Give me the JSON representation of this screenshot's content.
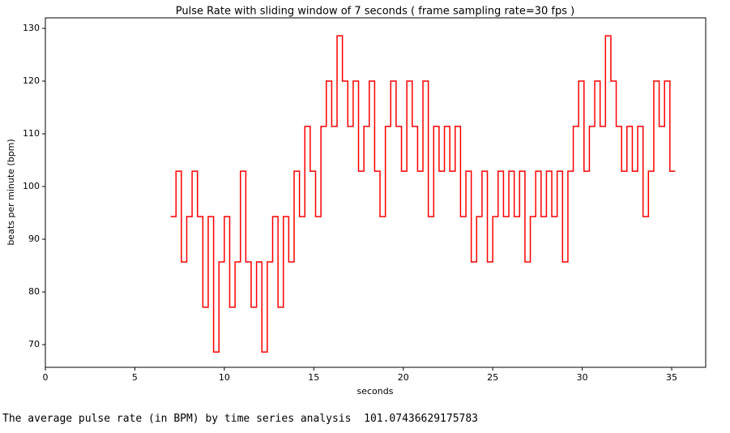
{
  "chart_data": {
    "type": "line",
    "title": "Pulse Rate with sliding window of 7 seconds  ( frame sampling rate=30 fps )",
    "xlabel": "seconds",
    "ylabel": "beats per minute (bpm)",
    "drawstyle": "steps-post",
    "grid": false,
    "xlim": [
      0,
      36.9
    ],
    "ylim": [
      65.7,
      132
    ],
    "xticks": [
      0,
      5,
      10,
      15,
      20,
      25,
      30,
      35
    ],
    "yticks": [
      70,
      80,
      90,
      100,
      110,
      120,
      130
    ],
    "x": [
      7.0,
      7.3,
      7.6,
      7.9,
      8.2,
      8.5,
      8.8,
      9.1,
      9.4,
      9.7,
      10.0,
      10.3,
      10.6,
      10.9,
      11.2,
      11.5,
      11.8,
      12.1,
      12.4,
      12.7,
      13.0,
      13.3,
      13.6,
      13.9,
      14.2,
      14.5,
      14.8,
      15.1,
      15.4,
      15.7,
      16.0,
      16.3,
      16.6,
      16.9,
      17.2,
      17.5,
      17.8,
      18.1,
      18.4,
      18.7,
      19.0,
      19.3,
      19.6,
      19.9,
      20.2,
      20.5,
      20.8,
      21.1,
      21.4,
      21.7,
      22.0,
      22.3,
      22.6,
      22.9,
      23.2,
      23.5,
      23.8,
      24.1,
      24.4,
      24.7,
      25.0,
      25.3,
      25.6,
      25.9,
      26.2,
      26.5,
      26.8,
      27.1,
      27.4,
      27.7,
      28.0,
      28.3,
      28.6,
      28.9,
      29.2,
      29.5,
      29.8,
      30.1,
      30.4,
      30.7,
      31.0,
      31.3,
      31.6,
      31.9,
      32.2,
      32.5,
      32.8,
      33.1,
      33.4,
      33.7,
      34.0,
      34.3,
      34.6,
      34.9,
      35.2
    ],
    "series": [
      {
        "name": "pulse rate",
        "color": "#ff0000",
        "values": [
          94.3,
          102.9,
          85.7,
          94.3,
          102.9,
          94.3,
          77.1,
          94.3,
          68.6,
          85.7,
          94.3,
          77.1,
          85.7,
          102.9,
          85.7,
          77.1,
          85.7,
          68.6,
          85.7,
          94.3,
          77.1,
          94.3,
          85.7,
          102.9,
          94.3,
          111.4,
          102.9,
          94.3,
          111.4,
          120,
          111.4,
          128.6,
          120,
          111.4,
          120,
          102.9,
          111.4,
          120,
          102.9,
          94.3,
          111.4,
          120,
          111.4,
          102.9,
          120,
          111.4,
          102.9,
          120,
          94.3,
          111.4,
          102.9,
          111.4,
          102.9,
          111.4,
          94.3,
          102.9,
          85.7,
          94.3,
          102.9,
          85.7,
          94.3,
          102.9,
          94.3,
          102.9,
          94.3,
          102.9,
          85.7,
          94.3,
          102.9,
          94.3,
          102.9,
          94.3,
          102.9,
          85.7,
          102.9,
          111.4,
          120,
          102.9,
          111.4,
          120,
          111.4,
          128.6,
          120,
          111.4,
          102.9,
          111.4,
          102.9,
          111.4,
          94.3,
          102.9,
          120,
          111.4,
          120,
          102.9,
          102.9
        ]
      }
    ]
  },
  "output": {
    "text": "The average pulse rate (in BPM) by time series analysis  101.07436629175783"
  }
}
